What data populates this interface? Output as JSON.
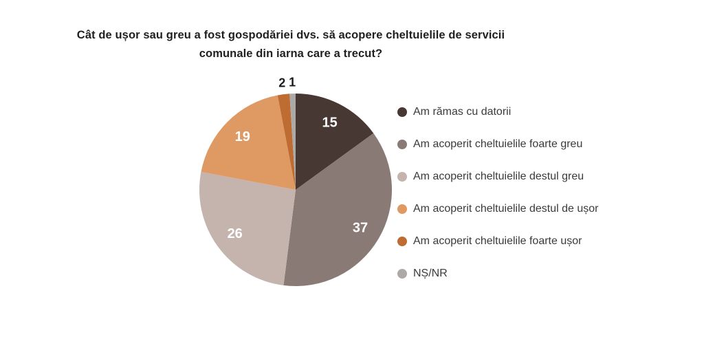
{
  "title": {
    "line1": "Cât de ușor sau greu a fost gospodăriei dvs. să acopere cheltuielile de servicii",
    "line2": "comunale din iarna care a trecut?"
  },
  "chart_data": {
    "type": "pie",
    "title": "Cât de ușor sau greu a fost gospodăriei dvs. să acopere cheltuielile de servicii comunale din iarna care a trecut?",
    "start_angle_deg": 0,
    "direction": "clockwise",
    "legend_position": "right",
    "categories": [
      "Am rămas cu datorii",
      "Am acoperit cheltuielile foarte greu",
      "Am acoperit cheltuielile destul greu",
      "Am acoperit cheltuielile destul de ușor",
      "Am acoperit cheltuielile foarte ușor",
      "NȘ/NR"
    ],
    "values": [
      15,
      37,
      26,
      19,
      2,
      1
    ],
    "slices": [
      {
        "label": "Am rămas cu datorii",
        "value": 15,
        "color": "#473833",
        "value_label_position": "inside",
        "value_label_color": "#ffffff"
      },
      {
        "label": "Am acoperit cheltuielile foarte greu",
        "value": 37,
        "color": "#8a7a76",
        "value_label_position": "inside",
        "value_label_color": "#ffffff"
      },
      {
        "label": "Am acoperit cheltuielile destul greu",
        "value": 26,
        "color": "#c5b3ae",
        "value_label_position": "inside",
        "value_label_color": "#ffffff"
      },
      {
        "label": "Am acoperit cheltuielile destul de ușor",
        "value": 19,
        "color": "#df9a64",
        "value_label_position": "inside",
        "value_label_color": "#ffffff"
      },
      {
        "label": "Am acoperit cheltuielile foarte ușor",
        "value": 2,
        "color": "#be6c31",
        "value_label_position": "outside",
        "value_label_color": "#1a1a1a"
      },
      {
        "label": "NȘ/NR",
        "value": 1,
        "color": "#aca9a7",
        "value_label_position": "outside",
        "value_label_color": "#1a1a1a"
      }
    ]
  }
}
